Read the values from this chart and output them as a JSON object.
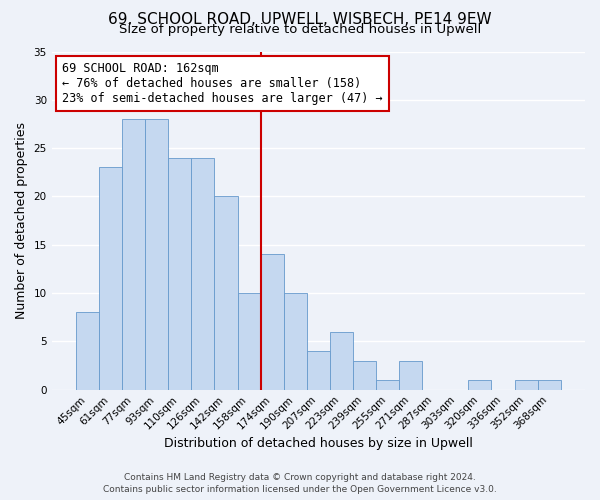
{
  "title": "69, SCHOOL ROAD, UPWELL, WISBECH, PE14 9EW",
  "subtitle": "Size of property relative to detached houses in Upwell",
  "xlabel": "Distribution of detached houses by size in Upwell",
  "ylabel": "Number of detached properties",
  "categories": [
    "45sqm",
    "61sqm",
    "77sqm",
    "93sqm",
    "110sqm",
    "126sqm",
    "142sqm",
    "158sqm",
    "174sqm",
    "190sqm",
    "207sqm",
    "223sqm",
    "239sqm",
    "255sqm",
    "271sqm",
    "287sqm",
    "303sqm",
    "320sqm",
    "336sqm",
    "352sqm",
    "368sqm"
  ],
  "values": [
    8,
    23,
    28,
    28,
    24,
    24,
    20,
    10,
    14,
    10,
    4,
    6,
    3,
    1,
    3,
    0,
    0,
    1,
    0,
    1,
    1
  ],
  "bar_color": "#c5d8f0",
  "bar_edge_color": "#6699cc",
  "vline_x_index": 7.5,
  "vline_color": "#cc0000",
  "annotation_line1": "69 SCHOOL ROAD: 162sqm",
  "annotation_line2": "← 76% of detached houses are smaller (158)",
  "annotation_line3": "23% of semi-detached houses are larger (47) →",
  "annotation_box_facecolor": "#ffffff",
  "annotation_box_edgecolor": "#cc0000",
  "ylim": [
    0,
    35
  ],
  "yticks": [
    0,
    5,
    10,
    15,
    20,
    25,
    30,
    35
  ],
  "footer_line1": "Contains HM Land Registry data © Crown copyright and database right 2024.",
  "footer_line2": "Contains public sector information licensed under the Open Government Licence v3.0.",
  "background_color": "#eef2f9",
  "grid_color": "#ffffff",
  "title_fontsize": 11,
  "subtitle_fontsize": 9.5,
  "axis_label_fontsize": 9,
  "tick_fontsize": 7.5,
  "annotation_fontsize": 8.5,
  "footer_fontsize": 6.5
}
